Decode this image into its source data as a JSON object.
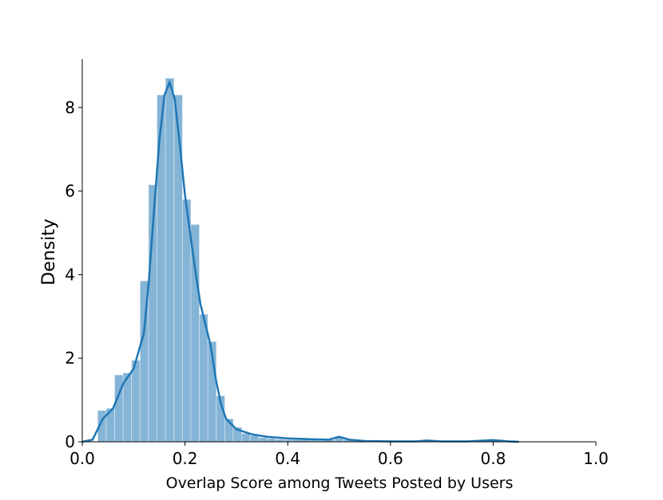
{
  "chart_data": {
    "type": "histogram",
    "xlabel": "Overlap Score among Tweets Posted by Users",
    "ylabel": "Density",
    "bins": [
      0.03,
      0.0465,
      0.063,
      0.0795,
      0.096,
      0.1125,
      0.129,
      0.1455,
      0.162,
      0.1785,
      0.195,
      0.2115,
      0.228,
      0.2445,
      0.261,
      0.2775,
      0.294,
      0.3105,
      0.327,
      0.3435,
      0.36,
      0.3765,
      0.393,
      0.4095,
      0.426,
      0.4425,
      0.459,
      0.4755,
      0.492,
      0.5085,
      0.525,
      0.5415,
      0.558,
      0.5745,
      0.591,
      0.6075,
      0.624,
      0.6405,
      0.657,
      0.6735,
      0.69,
      0.7065,
      0.723,
      0.7395,
      0.756,
      0.7725,
      0.789,
      0.8055,
      0.822
    ],
    "values": [
      0.75,
      0.8,
      1.6,
      1.65,
      1.95,
      3.85,
      6.15,
      8.3,
      8.7,
      8.3,
      5.8,
      5.2,
      3.05,
      2.4,
      1.1,
      0.55,
      0.35,
      0.2,
      0.15,
      0.1,
      0.08,
      0.06,
      0.05,
      0.05,
      0.06,
      0.04,
      0.03,
      0.05,
      0.12,
      0.05,
      0.02,
      0.02,
      0.01,
      0.01,
      0.01,
      0.01,
      0.01,
      0.02,
      0.03,
      0.01,
      0.01,
      0.01,
      0.01,
      0.01,
      0.02,
      0.01,
      0.04,
      0.03
    ],
    "color": "#1f77b4",
    "kde": {
      "x": [
        0.0,
        0.02,
        0.03,
        0.04,
        0.06,
        0.08,
        0.1,
        0.12,
        0.13,
        0.14,
        0.15,
        0.16,
        0.17,
        0.18,
        0.19,
        0.2,
        0.21,
        0.22,
        0.23,
        0.24,
        0.25,
        0.26,
        0.27,
        0.28,
        0.3,
        0.33,
        0.36,
        0.4,
        0.45,
        0.48,
        0.5,
        0.52,
        0.55,
        0.6,
        0.65,
        0.67,
        0.7,
        0.75,
        0.8,
        0.83,
        0.85
      ],
      "values": [
        0,
        0.05,
        0.3,
        0.55,
        0.8,
        1.4,
        1.75,
        2.6,
        3.9,
        5.6,
        7.2,
        8.3,
        8.6,
        8.2,
        7.1,
        5.9,
        5.0,
        4.1,
        3.3,
        2.8,
        2.3,
        1.5,
        0.9,
        0.55,
        0.3,
        0.18,
        0.12,
        0.08,
        0.06,
        0.05,
        0.12,
        0.05,
        0.02,
        0.01,
        0.01,
        0.03,
        0.01,
        0.01,
        0.04,
        0.01,
        0
      ]
    },
    "xlim": [
      0,
      1
    ],
    "ylim": [
      0,
      9.16
    ],
    "xticks": [
      {
        "value": 0,
        "label": "0.0"
      },
      {
        "value": 0.2,
        "label": "0.2"
      },
      {
        "value": 0.4,
        "label": "0.4"
      },
      {
        "value": 0.6,
        "label": "0.6"
      },
      {
        "value": 0.8,
        "label": "0.8"
      },
      {
        "value": 1,
        "label": "1.0"
      }
    ],
    "yticks": [
      0,
      2,
      4,
      6,
      8
    ]
  }
}
